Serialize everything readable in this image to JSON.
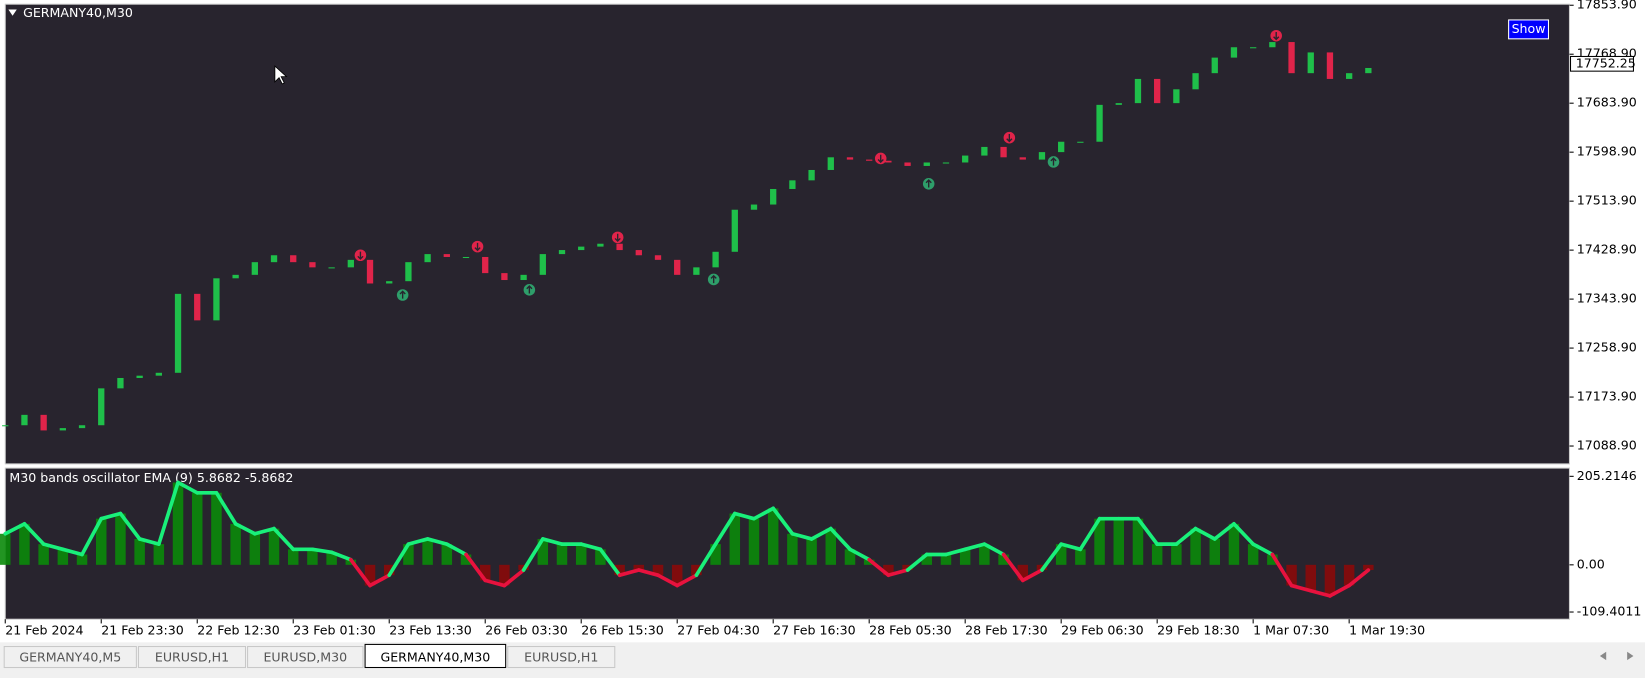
{
  "chart_data": [
    {
      "type": "candlestick",
      "title": "GERMANY40,M30",
      "categories": [
        "21 Feb 2024",
        null,
        null,
        null,
        null,
        "21 Feb 23:30",
        null,
        null,
        null,
        null,
        "22 Feb 12:30",
        null,
        null,
        null,
        null,
        "23 Feb 01:30",
        null,
        null,
        null,
        null,
        "23 Feb 13:30",
        null,
        null,
        null,
        null,
        "26 Feb 03:30",
        null,
        null,
        null,
        null,
        "26 Feb 15:30",
        null,
        null,
        null,
        null,
        "27 Feb 04:30",
        null,
        null,
        null,
        null,
        "27 Feb 16:30",
        null,
        null,
        null,
        null,
        "28 Feb 05:30",
        null,
        null,
        null,
        null,
        "28 Feb 17:30",
        null,
        null,
        null,
        null,
        "29 Feb 06:30",
        null,
        null,
        null,
        null,
        "29 Feb 18:30",
        null,
        null,
        null,
        null,
        "1 Mar 07:30",
        null,
        null,
        null,
        null,
        "1 Mar 19:30",
        null
      ],
      "closes": [
        17125,
        17143,
        17116,
        17120,
        17125,
        17189,
        17207,
        17211,
        17216,
        17353,
        17307,
        17380,
        17386,
        17408,
        17420,
        17408,
        17399,
        17399,
        17412,
        17371,
        17375,
        17408,
        17422,
        17417,
        17417,
        17389,
        17377,
        17386,
        17422,
        17429,
        17435,
        17440,
        17429,
        17420,
        17412,
        17386,
        17399,
        17426,
        17499,
        17508,
        17535,
        17550,
        17568,
        17590,
        17586,
        17584,
        17581,
        17575,
        17581,
        17581,
        17593,
        17608,
        17590,
        17586,
        17599,
        17617,
        17617,
        17681,
        17684,
        17726,
        17684,
        17708,
        17736,
        17763,
        17781,
        17781,
        17790,
        17736,
        17772,
        17726,
        17736,
        17745
      ],
      "up_color": "#1fbf4a",
      "down_color": "#e0244a",
      "last_price": 17752.25,
      "ylim": [
        17057.9,
        17855.7
      ],
      "yticks": [
        {
          "value": 17853.9,
          "label": "17853.90"
        },
        {
          "value": 17768.9,
          "label": "17768.90"
        },
        {
          "value": 17683.9,
          "label": "17683.90"
        },
        {
          "value": 17598.9,
          "label": "17598.90"
        },
        {
          "value": 17513.9,
          "label": "17513.90"
        },
        {
          "value": 17428.9,
          "label": "17428.90"
        },
        {
          "value": 17343.9,
          "label": "17343.90"
        },
        {
          "value": 17258.9,
          "label": "17258.90"
        },
        {
          "value": 17173.9,
          "label": "17173.90"
        },
        {
          "value": 17088.9,
          "label": "17088.90"
        }
      ],
      "signals_sell": [
        {
          "index": 18.5,
          "price": 17420
        },
        {
          "index": 24.6,
          "price": 17435
        },
        {
          "index": 31.9,
          "price": 17451
        },
        {
          "index": 45.6,
          "price": 17588
        },
        {
          "index": 52.3,
          "price": 17624
        },
        {
          "index": 66.2,
          "price": 17801
        }
      ],
      "signals_buy": [
        {
          "index": 20.7,
          "price": 17351
        },
        {
          "index": 27.3,
          "price": 17360
        },
        {
          "index": 36.9,
          "price": 17378
        },
        {
          "index": 48.1,
          "price": 17544
        },
        {
          "index": 54.6,
          "price": 17582
        }
      ],
      "sell_color": "#e0244a",
      "buy_color": "#2e9e6a"
    },
    {
      "type": "histogram-line",
      "title": "M30 bands oscillator EMA (9)  5.8682 -5.8682",
      "values": [
        72,
        95,
        48,
        36,
        24,
        107,
        119,
        60,
        48,
        191,
        167,
        167,
        95,
        72,
        84,
        36,
        36,
        29,
        12,
        -48,
        -24,
        48,
        60,
        48,
        24,
        -36,
        -48,
        -12,
        60,
        48,
        48,
        36,
        -24,
        -12,
        -24,
        -48,
        -24,
        48,
        119,
        107,
        131,
        72,
        60,
        84,
        36,
        12,
        -24,
        -12,
        24,
        24,
        36,
        48,
        24,
        -36,
        -12,
        48,
        36,
        107,
        107,
        107,
        48,
        48,
        84,
        60,
        95,
        48,
        24,
        -48,
        -60,
        -72,
        -48,
        -12
      ],
      "positive_color": "#19f07a",
      "negative_color": "#e8123e",
      "bar_positive_color": "#0a8a0a",
      "bar_negative_color": "#8a0a0a",
      "ylim": [
        -126.1,
        224.3
      ],
      "yticks": [
        205.2146,
        {
          "value": 0,
          "label": "0.00"
        },
        -109.4011
      ]
    }
  ],
  "button": "Show",
  "tabs": [
    {
      "label": "GERMANY40,M5",
      "active": false
    },
    {
      "label": "EURUSD,H1",
      "active": false
    },
    {
      "label": "EURUSD,M30",
      "active": false
    },
    {
      "label": "GERMANY40,M30",
      "active": true
    },
    {
      "label": "EURUSD,H1",
      "active": false
    }
  ]
}
